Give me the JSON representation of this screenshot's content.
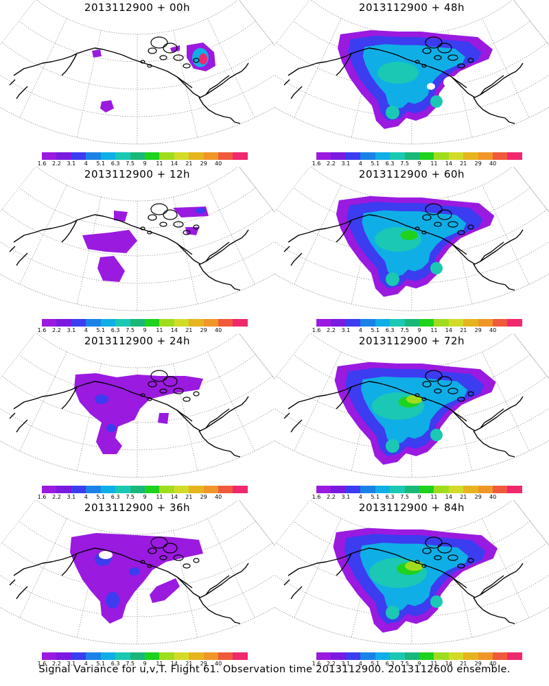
{
  "panels": [
    {
      "title": "2013112900 + 00h",
      "lead": 0
    },
    {
      "title": "2013112900 + 48h",
      "lead": 48
    },
    {
      "title": "2013112900 + 12h",
      "lead": 12
    },
    {
      "title": "2013112900 + 60h",
      "lead": 60
    },
    {
      "title": "2013112900 + 24h",
      "lead": 24
    },
    {
      "title": "2013112900 + 72h",
      "lead": 72
    },
    {
      "title": "2013112900 + 36h",
      "lead": 36
    },
    {
      "title": "2013112900 + 84h",
      "lead": 84
    }
  ],
  "colorbar": {
    "colors": [
      "#9a1ae0",
      "#7a1ae0",
      "#3c3cf0",
      "#1a82e6",
      "#10aee6",
      "#1ac8b4",
      "#1ab878",
      "#1ed21e",
      "#a0dc1e",
      "#d2dc28",
      "#e6b41e",
      "#f09628",
      "#f05a3c",
      "#f0286e"
    ],
    "ticks": [
      "1.6",
      "2.2",
      "3.1",
      "4",
      "5.1",
      "6.3",
      "7.5",
      "9",
      "11",
      "14",
      "21",
      "29",
      "40"
    ]
  },
  "footer": "Signal Variance for u,v,T. Flight 61. Observation time 2013112900. 2013112600 ensemble."
}
